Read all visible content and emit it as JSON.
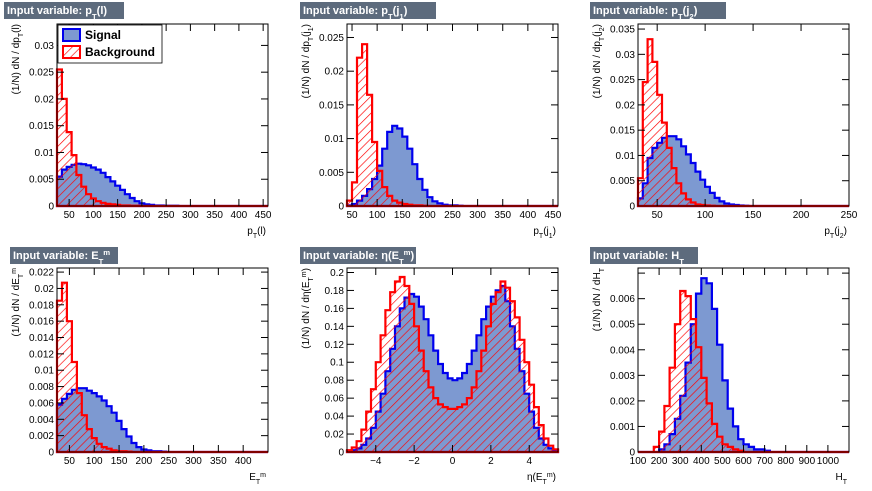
{
  "colors": {
    "signal_fill": "#7d99d1",
    "signal_line": "#0000ee",
    "background_line": "#ff0000",
    "title_bg": "#5d6b7d"
  },
  "legend": {
    "signal": "Signal",
    "background": "Background"
  },
  "chart_data": [
    {
      "type": "histogram",
      "title": "Input variable: p_T(l)",
      "xlabel": "p_T(l)",
      "ylabel": "(1/N) dN / dp_T(l)",
      "xlim": [
        25,
        460
      ],
      "ylim": [
        0,
        0.034
      ],
      "xticks": [
        50,
        100,
        150,
        200,
        250,
        300,
        350,
        400,
        450
      ],
      "yticks": [
        0,
        0.005,
        0.01,
        0.015,
        0.02,
        0.025,
        0.03
      ],
      "ytick_labels": [
        "0",
        "0.005",
        "0.01",
        "0.015",
        "0.02",
        "0.025",
        "0.03"
      ],
      "bins": {
        "start": 25,
        "width": 10
      },
      "series": [
        {
          "name": "Signal",
          "values": [
            0.0055,
            0.0068,
            0.0073,
            0.0077,
            0.0079,
            0.0078,
            0.0076,
            0.0072,
            0.0068,
            0.0062,
            0.0054,
            0.0046,
            0.0038,
            0.003,
            0.0022,
            0.0015,
            0.0009,
            0.0005,
            0.0003,
            0.0002,
            0.0001,
            0.0001,
            5e-05,
            5e-05,
            5e-05,
            0,
            0,
            0,
            0,
            0,
            0,
            0,
            0,
            0,
            0,
            0,
            0,
            0,
            0,
            0,
            0,
            0,
            0,
            0
          ]
        },
        {
          "name": "Background",
          "values": [
            0.0255,
            0.02,
            0.0138,
            0.0095,
            0.0058,
            0.0036,
            0.0022,
            0.0014,
            0.0009,
            0.0006,
            0.0004,
            0.0003,
            0.0002,
            0.0001,
            0.0001,
            5e-05,
            5e-05,
            0,
            0,
            0,
            0,
            0,
            0,
            0,
            0,
            0,
            0,
            0,
            0,
            0,
            0,
            0,
            0,
            0,
            0,
            0,
            0,
            0,
            0,
            0,
            0,
            0,
            0,
            0
          ]
        }
      ]
    },
    {
      "type": "histogram",
      "title": "Input variable: p_T(j_1)",
      "xlabel": "p_T(j_1)",
      "ylabel": "(1/N) dN / dp_T(j_1)",
      "xlim": [
        40,
        460
      ],
      "ylim": [
        0,
        0.027
      ],
      "xticks": [
        50,
        100,
        150,
        200,
        250,
        300,
        350,
        400,
        450
      ],
      "yticks": [
        0,
        0.005,
        0.01,
        0.015,
        0.02,
        0.025
      ],
      "ytick_labels": [
        "0",
        "0.005",
        "0.01",
        "0.015",
        "0.02",
        "0.025"
      ],
      "bins": {
        "start": 40,
        "width": 10
      },
      "series": [
        {
          "name": "Signal",
          "values": [
            0.0001,
            0.0003,
            0.0008,
            0.0015,
            0.0025,
            0.004,
            0.006,
            0.0085,
            0.011,
            0.0119,
            0.0115,
            0.0103,
            0.0085,
            0.0062,
            0.004,
            0.0024,
            0.0013,
            0.0007,
            0.0004,
            0.0002,
            0.0001,
            0.0001,
            5e-05,
            0,
            0,
            0,
            0,
            0,
            0,
            0,
            0,
            0,
            0,
            0,
            0,
            0,
            0,
            0,
            0,
            0,
            0,
            0
          ]
        },
        {
          "name": "Background",
          "values": [
            0.0008,
            0.0035,
            0.022,
            0.024,
            0.0165,
            0.0095,
            0.0052,
            0.0028,
            0.0015,
            0.0008,
            0.0005,
            0.0003,
            0.0002,
            0.0001,
            0.0001,
            5e-05,
            0,
            0,
            0,
            0,
            0,
            0,
            0,
            0,
            0,
            0,
            0,
            0,
            0,
            0,
            0,
            0,
            0,
            0,
            0,
            0,
            0,
            0,
            0,
            0,
            0,
            0
          ]
        }
      ]
    },
    {
      "type": "histogram",
      "title": "Input variable: p_T(j_2)",
      "xlabel": "p_T(j_2)",
      "ylabel": "(1/N) dN / dp_T(j_2)",
      "xlim": [
        30,
        250
      ],
      "ylim": [
        0,
        0.036
      ],
      "xticks": [
        50,
        100,
        150,
        200,
        250
      ],
      "yticks": [
        0,
        0.005,
        0.01,
        0.015,
        0.02,
        0.025,
        0.03,
        0.035
      ],
      "ytick_labels": [
        "0",
        "0.005",
        "0.01",
        "0.015",
        "0.02",
        "0.025",
        "0.03",
        "0.035"
      ],
      "bins": {
        "start": 30,
        "width": 5
      },
      "series": [
        {
          "name": "Signal",
          "values": [
            0.0015,
            0.0045,
            0.0095,
            0.0115,
            0.0125,
            0.0135,
            0.0138,
            0.0138,
            0.0132,
            0.0118,
            0.0102,
            0.0085,
            0.0068,
            0.0052,
            0.0038,
            0.0026,
            0.0016,
            0.0009,
            0.0005,
            0.0003,
            0.0002,
            0.0001,
            5e-05,
            0,
            0,
            0,
            0,
            0,
            0,
            0,
            0,
            0,
            0,
            0,
            0,
            0,
            0,
            0,
            0,
            0,
            0,
            0,
            0,
            0
          ]
        },
        {
          "name": "Background",
          "values": [
            0.0055,
            0.0245,
            0.033,
            0.0285,
            0.022,
            0.0165,
            0.0115,
            0.0075,
            0.0045,
            0.0025,
            0.0013,
            0.0007,
            0.0003,
            0.0002,
            0.0001,
            5e-05,
            0,
            0,
            0,
            0,
            0,
            0,
            0,
            0,
            0,
            0,
            0,
            0,
            0,
            0,
            0,
            0,
            0,
            0,
            0,
            0,
            0,
            0,
            0,
            0,
            0,
            0,
            0,
            0
          ]
        }
      ]
    },
    {
      "type": "histogram",
      "title": "Input variable: E_T^m",
      "xlabel": "E_T^m",
      "ylabel": "(1/N) dN / dE_T^m",
      "xlim": [
        25,
        450
      ],
      "ylim": [
        0,
        0.0225
      ],
      "xticks": [
        50,
        100,
        150,
        200,
        250,
        300,
        350,
        400
      ],
      "yticks": [
        0,
        0.002,
        0.004,
        0.006,
        0.008,
        0.01,
        0.012,
        0.014,
        0.016,
        0.018,
        0.02,
        0.022
      ],
      "ytick_labels": [
        "0",
        "0.002",
        "0.004",
        "0.006",
        "0.008",
        "0.01",
        "0.012",
        "0.014",
        "0.016",
        "0.018",
        "0.02",
        "0.022"
      ],
      "bins": {
        "start": 25,
        "width": 10
      },
      "series": [
        {
          "name": "Signal",
          "values": [
            0.0058,
            0.0065,
            0.0071,
            0.0076,
            0.0078,
            0.0078,
            0.0075,
            0.0072,
            0.0068,
            0.0063,
            0.0056,
            0.0048,
            0.0038,
            0.0028,
            0.0019,
            0.0011,
            0.0006,
            0.0003,
            0.0002,
            0.0001,
            0.0001,
            5e-05,
            0,
            0,
            0,
            0,
            0,
            0,
            0,
            0,
            0,
            0,
            0,
            0,
            0,
            0,
            0,
            0,
            0,
            0,
            0,
            0,
            0
          ]
        },
        {
          "name": "Background",
          "values": [
            0.0185,
            0.0207,
            0.016,
            0.011,
            0.0072,
            0.0045,
            0.0028,
            0.0017,
            0.001,
            0.0006,
            0.0004,
            0.0002,
            0.0001,
            0.0001,
            5e-05,
            0,
            0,
            0,
            0,
            0,
            0,
            0,
            0,
            0,
            0,
            0,
            0,
            0,
            0,
            0,
            0,
            0,
            0,
            0,
            0,
            0,
            0,
            0,
            0,
            0,
            0,
            0,
            0
          ]
        }
      ]
    },
    {
      "type": "histogram",
      "title": "Input variable: η(E_T^m)",
      "xlabel": "η(E_T^m)",
      "ylabel": "(1/N) dN / dη(E_T^m)",
      "xlim": [
        -5.5,
        5.5
      ],
      "ylim": [
        0,
        0.205
      ],
      "xticks": [
        -4,
        -2,
        0,
        2,
        4
      ],
      "yticks": [
        0,
        0.02,
        0.04,
        0.06,
        0.08,
        0.1,
        0.12,
        0.14,
        0.16,
        0.18,
        0.2
      ],
      "ytick_labels": [
        "0",
        "0.02",
        "0.04",
        "0.06",
        "0.08",
        "0.1",
        "0.12",
        "0.14",
        "0.16",
        "0.18",
        "0.2"
      ],
      "bins": {
        "start": -5.5,
        "width": 0.25
      },
      "series": [
        {
          "name": "Signal",
          "values": [
            0.001,
            0.002,
            0.004,
            0.008,
            0.015,
            0.027,
            0.045,
            0.065,
            0.09,
            0.115,
            0.14,
            0.16,
            0.172,
            0.176,
            0.173,
            0.162,
            0.148,
            0.13,
            0.113,
            0.098,
            0.088,
            0.082,
            0.08,
            0.082,
            0.088,
            0.098,
            0.113,
            0.13,
            0.148,
            0.162,
            0.173,
            0.18,
            0.185,
            0.168,
            0.14,
            0.115,
            0.09,
            0.065,
            0.045,
            0.027,
            0.015,
            0.008,
            0.004,
            0.002
          ]
        },
        {
          "name": "Background",
          "values": [
            0.002,
            0.005,
            0.012,
            0.025,
            0.045,
            0.07,
            0.1,
            0.13,
            0.158,
            0.178,
            0.19,
            0.195,
            0.185,
            0.165,
            0.14,
            0.113,
            0.09,
            0.072,
            0.06,
            0.053,
            0.05,
            0.048,
            0.048,
            0.05,
            0.053,
            0.06,
            0.072,
            0.09,
            0.113,
            0.14,
            0.165,
            0.178,
            0.19,
            0.183,
            0.168,
            0.15,
            0.125,
            0.1,
            0.075,
            0.05,
            0.03,
            0.015,
            0.007,
            0.003
          ]
        }
      ]
    },
    {
      "type": "histogram",
      "title": "Input variable: H_T",
      "xlabel": "H_T",
      "ylabel": "(1/N) dN / dH_T",
      "xlim": [
        100,
        1100
      ],
      "ylim": [
        0,
        0.0072
      ],
      "xticks": [
        100,
        200,
        300,
        400,
        500,
        600,
        700,
        800,
        900,
        1000
      ],
      "yticks": [
        0,
        0.001,
        0.002,
        0.003,
        0.004,
        0.005,
        0.006,
        0.007
      ],
      "ytick_labels": [
        "0",
        "0.001",
        "0.002",
        "0.003",
        "0.004",
        "0.005",
        "0.006",
        ""
      ],
      "bins": {
        "start": 100,
        "width": 25
      },
      "series": [
        {
          "name": "Signal",
          "values": [
            0,
            0,
            0,
            0,
            0.0001,
            0.0003,
            0.0007,
            0.0013,
            0.0022,
            0.0035,
            0.005,
            0.0062,
            0.0068,
            0.0066,
            0.0056,
            0.0042,
            0.0028,
            0.0017,
            0.001,
            0.0005,
            0.0003,
            0.0002,
            0.0001,
            0.0001,
            5e-05,
            0,
            0,
            0,
            0,
            0,
            0,
            0,
            0,
            0,
            0,
            0,
            0,
            0,
            0,
            0
          ]
        },
        {
          "name": "Background",
          "values": [
            0,
            0,
            0,
            0.0002,
            0.0008,
            0.0018,
            0.0033,
            0.005,
            0.0063,
            0.0061,
            0.0052,
            0.0041,
            0.0029,
            0.0019,
            0.0011,
            0.0006,
            0.0003,
            0.0002,
            0.0001,
            5e-05,
            0,
            0,
            0,
            0,
            0,
            0,
            0,
            0,
            0,
            0,
            0,
            0,
            0,
            0,
            0,
            0,
            0,
            0,
            0,
            0
          ]
        }
      ]
    }
  ]
}
